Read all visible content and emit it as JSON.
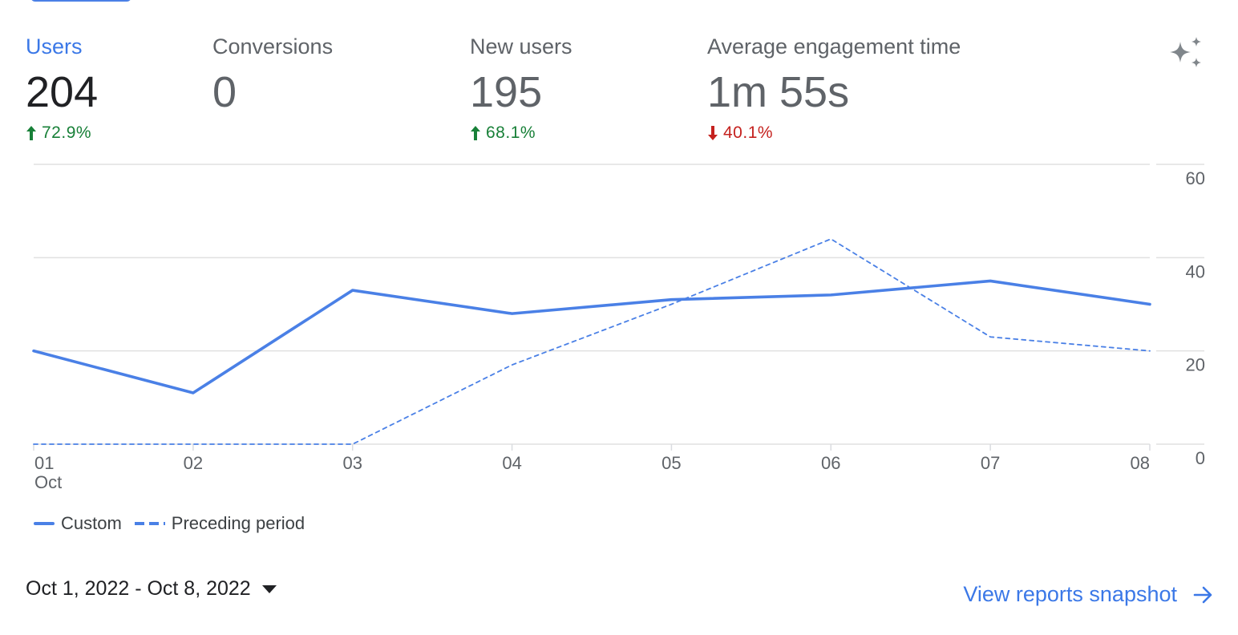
{
  "metrics": [
    {
      "label": "Users",
      "value": "204",
      "delta": "72.9%",
      "direction": "up",
      "active": true
    },
    {
      "label": "Conversions",
      "value": "0",
      "delta": "",
      "direction": "none",
      "active": false
    },
    {
      "label": "New users",
      "value": "195",
      "delta": "68.1%",
      "direction": "up",
      "active": false
    },
    {
      "label": "Average engagement time",
      "value": "1m 55s",
      "delta": "40.1%",
      "direction": "down",
      "active": false
    }
  ],
  "icons": {
    "insights": "sparkle-icon",
    "arrow_up": "arrow-up-icon",
    "arrow_down": "arrow-down-icon",
    "arrow_right": "arrow-right-icon",
    "caret": "caret-down-icon"
  },
  "colors": {
    "accent": "#3b78e7",
    "series": "#4a80e6",
    "positive": "#188038",
    "negative": "#c5221f"
  },
  "chart_data": {
    "type": "line",
    "categories": [
      "01",
      "02",
      "03",
      "04",
      "05",
      "06",
      "07",
      "08"
    ],
    "x_sublabel": "Oct",
    "series": [
      {
        "name": "Custom",
        "style": "solid",
        "values": [
          20,
          11,
          33,
          28,
          31,
          32,
          35,
          30
        ]
      },
      {
        "name": "Preceding period",
        "style": "dashed",
        "values": [
          0,
          0,
          0,
          17,
          30,
          44,
          23,
          20
        ]
      }
    ],
    "y_ticks": [
      0,
      20,
      40,
      60
    ],
    "ylim": [
      0,
      60
    ],
    "y_axis_position": "right",
    "grid": true,
    "legend_position": "bottom-left"
  },
  "legend": {
    "items": [
      {
        "label": "Custom",
        "style": "solid"
      },
      {
        "label": "Preceding period",
        "style": "dashed"
      }
    ]
  },
  "footer": {
    "date_range": "Oct 1, 2022 - Oct 8, 2022",
    "view_reports_label": "View reports snapshot"
  }
}
